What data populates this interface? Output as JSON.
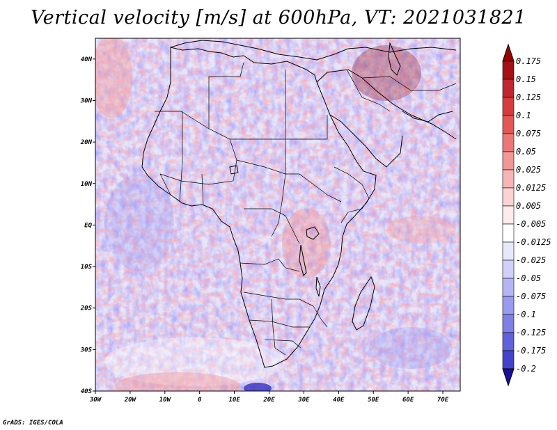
{
  "title": "Vertical velocity [m/s] at 600hPa, VT: 2021031821",
  "credit": "GrADS: IGES/COLA",
  "map": {
    "lon_range": [
      -30,
      75
    ],
    "lat_range": [
      -40,
      45
    ],
    "x_ticks": [
      {
        "lon": -30,
        "label": "30W"
      },
      {
        "lon": -20,
        "label": "20W"
      },
      {
        "lon": -10,
        "label": "10W"
      },
      {
        "lon": 0,
        "label": "0"
      },
      {
        "lon": 10,
        "label": "10E"
      },
      {
        "lon": 20,
        "label": "20E"
      },
      {
        "lon": 30,
        "label": "30E"
      },
      {
        "lon": 40,
        "label": "40E"
      },
      {
        "lon": 50,
        "label": "50E"
      },
      {
        "lon": 60,
        "label": "60E"
      },
      {
        "lon": 70,
        "label": "70E"
      }
    ],
    "y_ticks": [
      {
        "lat": 40,
        "label": "40N"
      },
      {
        "lat": 30,
        "label": "30N"
      },
      {
        "lat": 20,
        "label": "20N"
      },
      {
        "lat": 10,
        "label": "10N"
      },
      {
        "lat": 0,
        "label": "EQ"
      },
      {
        "lat": -10,
        "label": "10S"
      },
      {
        "lat": -20,
        "label": "20S"
      },
      {
        "lat": -30,
        "label": "30S"
      },
      {
        "lat": -40,
        "label": "40S"
      }
    ]
  },
  "colorbar": {
    "levels": [
      {
        "label": "0.175",
        "color": "#a50f15"
      },
      {
        "label": "0.15",
        "color": "#c0262d"
      },
      {
        "label": "0.125",
        "color": "#d73c3c"
      },
      {
        "label": "0.1",
        "color": "#e35757"
      },
      {
        "label": "0.075",
        "color": "#ec7777"
      },
      {
        "label": "0.05",
        "color": "#f29696"
      },
      {
        "label": "0.025",
        "color": "#f7b5b5"
      },
      {
        "label": "0.0125",
        "color": "#fbd3d3"
      },
      {
        "label": "0.005",
        "color": "#feecec"
      },
      {
        "label": "-0.005",
        "color": "#ffffff"
      },
      {
        "label": "-0.0125",
        "color": "#e8e8fd"
      },
      {
        "label": "-0.025",
        "color": "#d0d0fa"
      },
      {
        "label": "-0.05",
        "color": "#b5b5f6"
      },
      {
        "label": "-0.075",
        "color": "#9a9af0"
      },
      {
        "label": "-0.1",
        "color": "#7f7fe8"
      },
      {
        "label": "-0.125",
        "color": "#6161dd"
      },
      {
        "label": "-0.175",
        "color": "#4343cd"
      },
      {
        "label": "-0.2",
        "color": "#2424b4"
      }
    ],
    "top_arrow_color": "#990000",
    "bottom_arrow_color": "#1a0f99"
  }
}
